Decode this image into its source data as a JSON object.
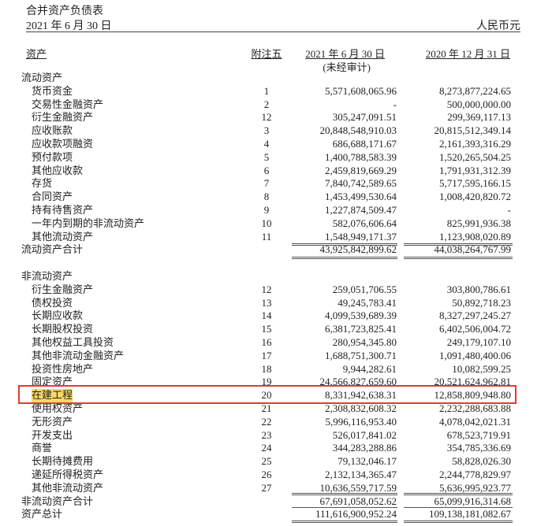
{
  "title": "合并资产负债表",
  "date": "2021 年 6 月 30 日",
  "currency": "人民币元",
  "headers": {
    "asset": "资产",
    "note": "附注五",
    "col1": "2021 年 6 月 30 日",
    "col1_sub": "(未经审计)",
    "col2": "2020 年 12 月 31 日"
  },
  "highlight_color": "#e53935",
  "rows": [
    {
      "type": "section",
      "label": "流动资产"
    },
    {
      "type": "item",
      "label": "货币资金",
      "note": "1",
      "c1": "5,571,608,065.96",
      "c2": "8,273,877,224.65"
    },
    {
      "type": "item",
      "label": "交易性金融资产",
      "note": "2",
      "c1": "-",
      "c2": "500,000,000.00"
    },
    {
      "type": "item",
      "label": "衍生金融资产",
      "note": "12",
      "c1": "305,247,091.51",
      "c2": "299,369,117.13"
    },
    {
      "type": "item",
      "label": "应收账款",
      "note": "3",
      "c1": "20,848,548,910.03",
      "c2": "20,815,512,349.14"
    },
    {
      "type": "item",
      "label": "应收款项融资",
      "note": "4",
      "c1": "686,688,171.67",
      "c2": "2,161,393,316.29"
    },
    {
      "type": "item",
      "label": "预付款项",
      "note": "5",
      "c1": "1,400,788,583.39",
      "c2": "1,520,265,504.25"
    },
    {
      "type": "item",
      "label": "其他应收款",
      "note": "6",
      "c1": "2,459,819,669.29",
      "c2": "1,791,931,312.39"
    },
    {
      "type": "item",
      "label": "存货",
      "note": "7",
      "c1": "7,840,742,589.65",
      "c2": "5,717,595,166.15"
    },
    {
      "type": "item",
      "label": "合同资产",
      "note": "8",
      "c1": "1,453,499,530.64",
      "c2": "1,008,420,820.72"
    },
    {
      "type": "item",
      "label": "持有待售资产",
      "note": "9",
      "c1": "1,227,874,509.47",
      "c2": "-"
    },
    {
      "type": "item",
      "label": "一年内到期的非流动资产",
      "note": "10",
      "c1": "582,076,606.64",
      "c2": "825,991,936.38"
    },
    {
      "type": "item",
      "label": "其他流动资产",
      "note": "11",
      "c1": "1,548,949,171.37",
      "c2": "1,123,908,020.89"
    },
    {
      "type": "total",
      "label": "流动资产合计",
      "note": "",
      "c1": "43,925,842,899.62",
      "c2": "44,038,264,767.99"
    },
    {
      "type": "blank",
      "label": ""
    },
    {
      "type": "section",
      "label": "非流动资产"
    },
    {
      "type": "item",
      "label": "衍生金融资产",
      "note": "12",
      "c1": "259,051,706.55",
      "c2": "303,800,786.61"
    },
    {
      "type": "item",
      "label": "债权投资",
      "note": "13",
      "c1": "49,245,783.41",
      "c2": "50,892,718.23"
    },
    {
      "type": "item",
      "label": "长期应收款",
      "note": "14",
      "c1": "4,099,539,689.39",
      "c2": "8,327,297,245.27"
    },
    {
      "type": "item",
      "label": "长期股权投资",
      "note": "15",
      "c1": "6,381,723,825.41",
      "c2": "6,402,506,004.72"
    },
    {
      "type": "item",
      "label": "其他权益工具投资",
      "note": "16",
      "c1": "280,954,345.80",
      "c2": "249,179,107.10"
    },
    {
      "type": "item",
      "label": "其他非流动金融资产",
      "note": "17",
      "c1": "1,688,751,300.71",
      "c2": "1,091,480,400.06"
    },
    {
      "type": "item",
      "label": "投资性房地产",
      "note": "18",
      "c1": "9,944,282.61",
      "c2": "10,082,599.25"
    },
    {
      "type": "item",
      "label": "固定资产",
      "note": "19",
      "c1": "24,566,827,659.60",
      "c2": "20,521,624,962.81"
    },
    {
      "type": "item",
      "label": "在建工程",
      "note": "20",
      "c1": "8,331,942,638.31",
      "c2": "12,858,809,948.80",
      "highlighted": true
    },
    {
      "type": "item",
      "label": "使用权资产",
      "note": "21",
      "c1": "2,308,832,608.32",
      "c2": "2,232,288,683.88"
    },
    {
      "type": "item",
      "label": "无形资产",
      "note": "22",
      "c1": "5,996,116,953.40",
      "c2": "4,078,042,021.31"
    },
    {
      "type": "item",
      "label": "开发支出",
      "note": "23",
      "c1": "526,017,841.02",
      "c2": "678,523,719.91"
    },
    {
      "type": "item",
      "label": "商誉",
      "note": "24",
      "c1": "344,283,288.86",
      "c2": "354,785,336.69"
    },
    {
      "type": "item",
      "label": "长期待摊费用",
      "note": "25",
      "c1": "79,132,046.17",
      "c2": "58,828,026.30"
    },
    {
      "type": "item",
      "label": "递延所得税资产",
      "note": "26",
      "c1": "2,132,134,365.47",
      "c2": "2,244,778,829.97"
    },
    {
      "type": "item",
      "label": "其他非流动资产",
      "note": "27",
      "c1": "10,636,559,717.59",
      "c2": "5,636,995,923.77"
    },
    {
      "type": "total",
      "label": "非流动资产合计",
      "note": "",
      "c1": "67,691,058,052.62",
      "c2": "65,099,916,314.68"
    },
    {
      "type": "total",
      "label": "资产总计",
      "note": "",
      "c1": "111,616,900,952.24",
      "c2": "109,138,181,082.67"
    }
  ]
}
